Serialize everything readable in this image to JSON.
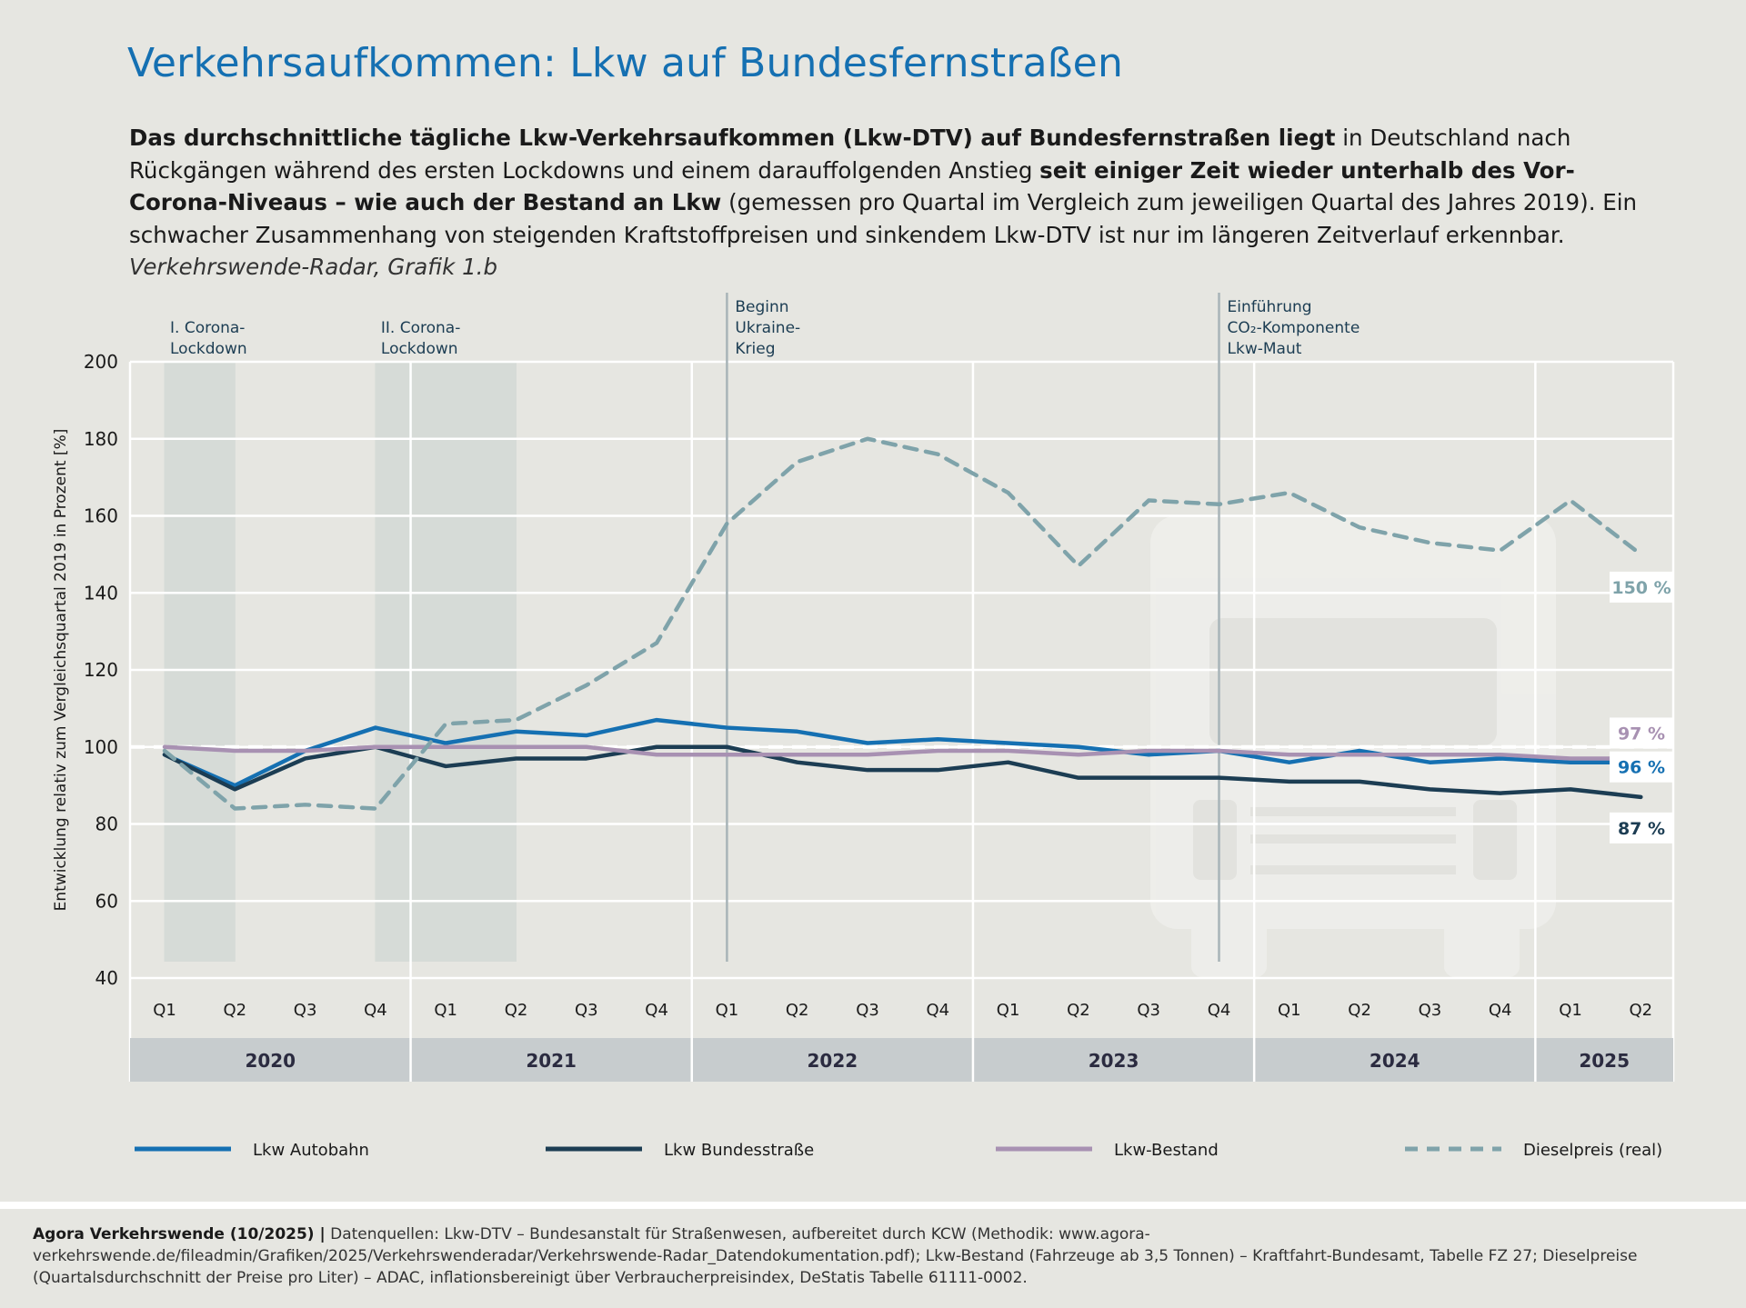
{
  "title": "Verkehrsaufkommen: Lkw auf Bundesfernstraßen",
  "intro": {
    "p1_bold": "Das durchschnittliche tägliche Lkw-Verkehrsaufkommen (Lkw-DTV) auf Bundesfernstraßen liegt",
    "p2": " in Deutschland nach Rückgängen während des ersten Lockdowns und einem darauffolgenden Anstieg ",
    "p3_bold": "seit einiger Zeit wieder unterhalb des Vor-Corona-Niveaus – wie auch der Bestand an Lkw",
    "p4": " (gemessen pro Quartal im Vergleich zum jeweiligen Quartal des Jahres 2019). Ein schwacher Zusammenhang von steigenden Kraftstoffpreisen und sinkendem Lkw-DTV ist nur im längeren Zeitverlauf erkennbar. ",
    "p5_italic": "Verkehrswende-Radar, Grafik 1.b"
  },
  "chart_data": {
    "type": "line",
    "ylabel": "Entwicklung relativ zum Vergleichsquartal 2019 in Prozent [%]",
    "ylim": [
      40,
      200
    ],
    "yticks": [
      40,
      60,
      80,
      100,
      120,
      140,
      160,
      180,
      200
    ],
    "reference_line": 100,
    "quarters": [
      "Q1",
      "Q2",
      "Q3",
      "Q4",
      "Q1",
      "Q2",
      "Q3",
      "Q4",
      "Q1",
      "Q2",
      "Q3",
      "Q4",
      "Q1",
      "Q2",
      "Q3",
      "Q4",
      "Q1",
      "Q2",
      "Q3",
      "Q4",
      "Q1",
      "Q2"
    ],
    "years": [
      {
        "label": "2020",
        "quarters": 4
      },
      {
        "label": "2021",
        "quarters": 4
      },
      {
        "label": "2022",
        "quarters": 4
      },
      {
        "label": "2023",
        "quarters": 4
      },
      {
        "label": "2024",
        "quarters": 4
      },
      {
        "label": "2025",
        "quarters": 2
      }
    ],
    "shaded_periods": [
      {
        "from": 0,
        "to": 1,
        "label": [
          "I. Corona-",
          "Lockdown"
        ]
      },
      {
        "from": 3,
        "to": 5,
        "label": [
          "II. Corona-",
          "Lockdown"
        ]
      }
    ],
    "events": [
      {
        "index": 8,
        "label": [
          "Beginn",
          "Ukraine-",
          "Krieg"
        ]
      },
      {
        "index": 15,
        "label": [
          "Einführung",
          "CO₂-Komponente",
          "Lkw-Maut"
        ]
      }
    ],
    "series": [
      {
        "name": "Lkw Autobahn",
        "color": "#1570b2",
        "dashed": false,
        "end_label": "96 %",
        "values": [
          98,
          90,
          99,
          105,
          101,
          104,
          103,
          107,
          105,
          104,
          101,
          102,
          101,
          100,
          98,
          99,
          96,
          99,
          96,
          97,
          96,
          96
        ]
      },
      {
        "name": "Lkw Bundesstraße",
        "color": "#1c3d53",
        "dashed": false,
        "end_label": "87 %",
        "values": [
          98,
          89,
          97,
          100,
          95,
          97,
          97,
          100,
          100,
          96,
          94,
          94,
          96,
          92,
          92,
          92,
          91,
          91,
          89,
          88,
          89,
          87
        ]
      },
      {
        "name": "Lkw-Bestand",
        "color": "#a891b2",
        "dashed": false,
        "end_label": "97 %",
        "values": [
          100,
          99,
          99,
          100,
          100,
          100,
          100,
          98,
          98,
          98,
          98,
          99,
          99,
          98,
          99,
          99,
          98,
          98,
          98,
          98,
          97,
          97
        ]
      },
      {
        "name": "Dieselpreis (real)",
        "color": "#7fa3aa",
        "dashed": true,
        "end_label": "150 %",
        "values": [
          99,
          84,
          85,
          84,
          106,
          107,
          116,
          127,
          158,
          174,
          180,
          176,
          166,
          147,
          164,
          163,
          166,
          157,
          153,
          151,
          164,
          150
        ]
      }
    ]
  },
  "footer": {
    "bold": "Agora Verkehrswende (10/2025) |",
    "text": " Datenquellen: Lkw-DTV – Bundesanstalt für Straßenwesen, aufbereitet durch KCW (Methodik: www.agora-verkehrswende.de/fileadmin/Grafiken/2025/Verkehrswenderadar/Verkehrswende-Radar_Datendokumentation.pdf); Lkw-Bestand (Fahrzeuge ab 3,5 Tonnen) – Kraftfahrt-Bundesamt, Tabelle FZ 27; Dieselpreise (Quartalsdurchschnitt der Preise pro Liter) – ADAC, inflationsbereinigt über Verbraucherpreisindex, DeStatis Tabelle 61111-0002."
  }
}
